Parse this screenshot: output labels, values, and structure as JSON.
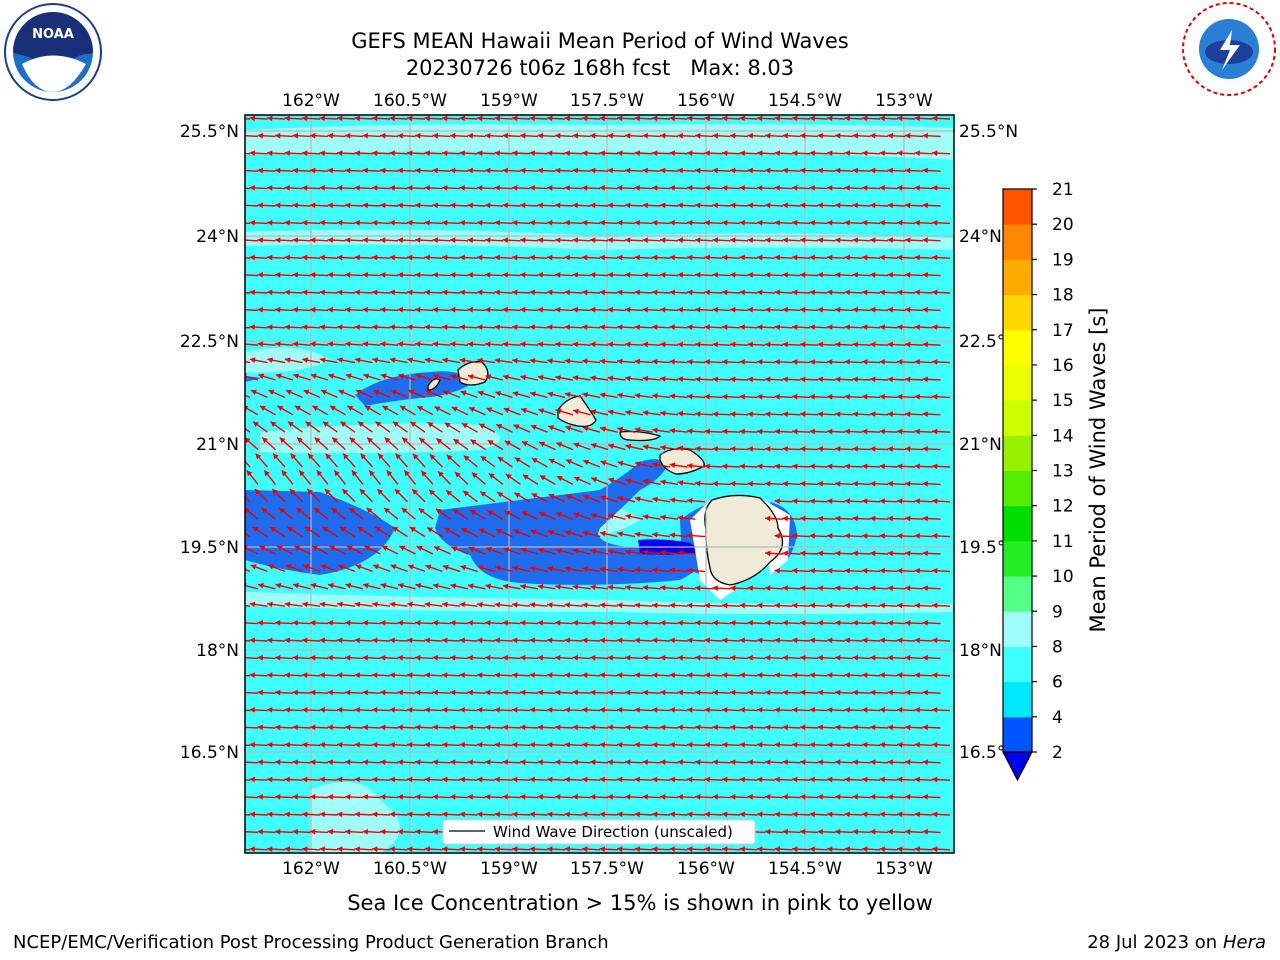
{
  "title_line1": "GEFS MEAN Hawaii Mean Period of Wind Waves",
  "title_line2": "20230726 t06z 168h fcst   Max: 8.03",
  "sea_ice_note": "Sea Ice Concentration > 15% is shown in pink to yellow",
  "footer_left": "NCEP/EMC/Verification Post Processing Product Generation Branch",
  "footer_right_date": "28 Jul 2023 on ",
  "footer_right_host": "Hera",
  "legend_label": "Wind Wave Direction (unscaled)",
  "colorbar_label": "Mean Period of Wind Waves [s]",
  "logos": {
    "left": "noaa-logo",
    "right": "nws-logo"
  },
  "lon_ticks": [
    "162°W",
    "160.5°W",
    "159°W",
    "157.5°W",
    "156°W",
    "154.5°W",
    "153°W"
  ],
  "lat_ticks": [
    "25.5°N",
    "24°N",
    "22.5°N",
    "21°N",
    "19.5°N",
    "18°N",
    "16.5°N"
  ],
  "colorbar": {
    "ticks": [
      "2",
      "4",
      "6",
      "8",
      "9",
      "10",
      "11",
      "12",
      "13",
      "14",
      "15",
      "16",
      "17",
      "18",
      "19",
      "20",
      "21"
    ],
    "colors": [
      "#0055ff",
      "#00e8ff",
      "#40ffff",
      "#9ffff8",
      "#55ff88",
      "#22ee22",
      "#00dd00",
      "#55ee00",
      "#99f000",
      "#ccff00",
      "#e8ff00",
      "#ffff00",
      "#ffd600",
      "#ffaa00",
      "#ff8800",
      "#ff5500",
      "#ff2a00",
      "#ff0000"
    ],
    "underflow_color": "#0000ee"
  },
  "colors": {
    "ocean_main": "#40ffff",
    "ocean_light": "#9ffff8",
    "ocean_low": "#1e6cf0",
    "land": "#efebd8",
    "arrow": "#ee0000",
    "grid": "#b8b8b8"
  }
}
